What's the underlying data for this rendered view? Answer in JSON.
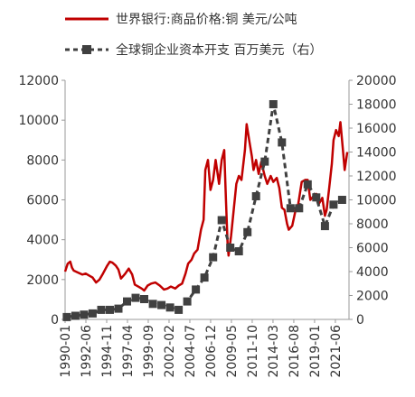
{
  "chart_data": {
    "type": "line",
    "legend_position": "top",
    "grid": false,
    "x_labels": [
      "1990-01",
      "1992-06",
      "1994-11",
      "1997-04",
      "1999-09",
      "2002-02",
      "2004-07",
      "2006-12",
      "2009-05",
      "2011-10",
      "2014-03",
      "2016-08",
      "2019-01",
      "2021-06"
    ],
    "left_axis": {
      "ylim": [
        0,
        12000
      ],
      "ticks": [
        "0",
        "2000",
        "4000",
        "6000",
        "8000",
        "10000",
        "12000"
      ]
    },
    "right_axis": {
      "ylim": [
        0,
        20000
      ],
      "ticks": [
        "0",
        "2000",
        "4000",
        "6000",
        "8000",
        "10000",
        "12000",
        "14000",
        "16000",
        "18000",
        "20000"
      ]
    },
    "series": [
      {
        "name": "世界银行:商品价格:铜 美元/公吨",
        "axis": "left",
        "color": "#c00000",
        "style": "solid",
        "x": [
          1990.0,
          1990.3,
          1990.6,
          1990.8,
          1991.0,
          1991.5,
          1992.0,
          1992.4,
          1992.8,
          1993.2,
          1993.6,
          1994.0,
          1994.4,
          1994.9,
          1995.2,
          1995.5,
          1995.9,
          1996.2,
          1996.5,
          1996.8,
          1997.0,
          1997.4,
          1997.8,
          1998.1,
          1998.5,
          1998.9,
          1999.2,
          1999.6,
          2000.0,
          2000.5,
          2001.0,
          2001.5,
          2001.9,
          2002.3,
          2002.8,
          2003.2,
          2003.6,
          2004.0,
          2004.3,
          2004.7,
          2005.0,
          2005.4,
          2005.8,
          2006.1,
          2006.3,
          2006.6,
          2006.9,
          2007.2,
          2007.5,
          2007.9,
          2008.2,
          2008.5,
          2008.7,
          2008.9,
          2009.0,
          2009.3,
          2009.6,
          2009.9,
          2010.2,
          2010.5,
          2010.9,
          2011.1,
          2011.4,
          2011.7,
          2011.9,
          2012.2,
          2012.5,
          2012.8,
          2013.2,
          2013.5,
          2013.9,
          2014.2,
          2014.6,
          2014.9,
          2015.2,
          2015.5,
          2015.8,
          2016.0,
          2016.4,
          2016.8,
          2017.1,
          2017.5,
          2017.9,
          2018.2,
          2018.5,
          2018.9,
          2019.2,
          2019.5,
          2019.9,
          2020.2,
          2020.4,
          2020.7,
          2021.0,
          2021.2,
          2021.5,
          2021.8,
          2022.0,
          2022.3,
          2022.5,
          2022.8
        ],
        "values": [
          2400,
          2800,
          2900,
          2600,
          2450,
          2350,
          2250,
          2300,
          2200,
          2100,
          1850,
          2000,
          2300,
          2700,
          2900,
          2850,
          2700,
          2500,
          2050,
          2200,
          2300,
          2550,
          2250,
          1750,
          1650,
          1550,
          1450,
          1700,
          1800,
          1850,
          1700,
          1500,
          1550,
          1650,
          1550,
          1700,
          1800,
          2300,
          2800,
          3000,
          3300,
          3500,
          4500,
          5000,
          7500,
          8000,
          6500,
          7000,
          8000,
          6800,
          8000,
          8500,
          6000,
          3700,
          3200,
          4200,
          5500,
          6800,
          7200,
          7000,
          8500,
          9800,
          9000,
          8200,
          7500,
          8000,
          7300,
          7900,
          7200,
          6800,
          7200,
          6900,
          7100,
          6600,
          5600,
          5500,
          4800,
          4500,
          4700,
          5500,
          5800,
          6900,
          7000,
          7000,
          6000,
          6200,
          6300,
          5800,
          6100,
          5200,
          5500,
          6600,
          7800,
          9000,
          9500,
          9200,
          9900,
          8500,
          7500,
          8400
        ]
      },
      {
        "name": "全球铜企业资本开支 百万美元（右）",
        "axis": "right",
        "color": "#404040",
        "style": "dashed",
        "x": [
          1990.2,
          1991.2,
          1992.2,
          1993.2,
          1994.2,
          1995.2,
          1996.2,
          1997.2,
          1998.2,
          1999.2,
          2000.2,
          2001.2,
          2002.2,
          2003.2,
          2004.2,
          2005.2,
          2006.2,
          2007.2,
          2008.2,
          2009.2,
          2010.2,
          2011.2,
          2012.2,
          2013.2,
          2014.2,
          2015.2,
          2016.2,
          2017.2,
          2018.2,
          2019.2,
          2020.2,
          2021.2,
          2022.2
        ],
        "values": [
          200,
          300,
          400,
          500,
          800,
          800,
          900,
          1500,
          1800,
          1700,
          1300,
          1200,
          1000,
          800,
          1500,
          2500,
          3500,
          5200,
          8300,
          6000,
          5700,
          7300,
          10300,
          13200,
          18000,
          14800,
          9300,
          9300,
          11300,
          10200,
          7800,
          9600,
          10000
        ]
      }
    ]
  }
}
